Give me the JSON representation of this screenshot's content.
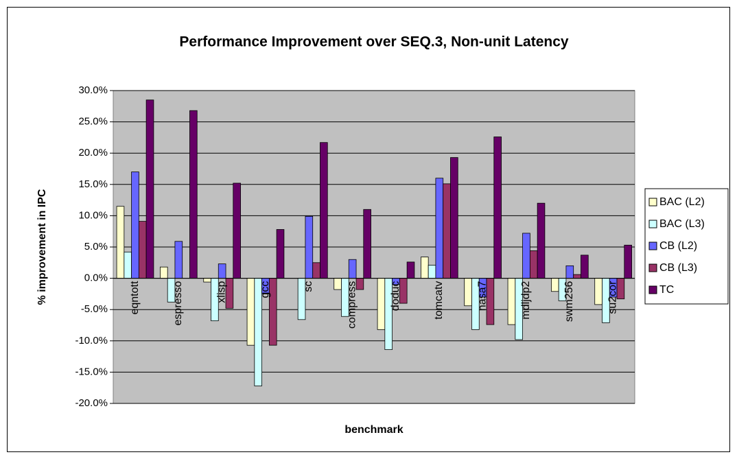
{
  "chart_data": {
    "type": "bar",
    "title": "Performance Improvement over SEQ.3, Non-unit Latency",
    "x_label": "benchmark",
    "y_label": "% improvement in IPC",
    "categories": [
      "eqntott",
      "espresso",
      "xlisp",
      "gcc",
      "sc",
      "compress",
      "doduc",
      "tomcatv",
      "nasa7",
      "mdljdp2",
      "swm256",
      "su2cor"
    ],
    "series": [
      {
        "name": "BAC (L2)",
        "color": "#ffffcc",
        "values": [
          11.5,
          1.8,
          -0.6,
          -10.7,
          0.0,
          -1.8,
          -8.2,
          3.4,
          -4.4,
          -7.4,
          -2.1,
          -4.2
        ]
      },
      {
        "name": "BAC (L3)",
        "color": "#ccffff",
        "values": [
          4.2,
          -3.8,
          -6.8,
          -17.2,
          -6.6,
          -6.1,
          -11.4,
          2.1,
          -8.2,
          -9.8,
          -3.6,
          -7.1
        ]
      },
      {
        "name": "CB (L2)",
        "color": "#6666ff",
        "values": [
          17.0,
          5.9,
          2.3,
          -2.5,
          9.9,
          3.0,
          -1.0,
          16.0,
          -3.0,
          7.2,
          2.0,
          -3.0
        ]
      },
      {
        "name": "CB (L3)",
        "color": "#993366",
        "values": [
          9.1,
          0.0,
          -4.8,
          -10.7,
          2.5,
          -1.8,
          -4.0,
          15.1,
          -7.4,
          4.4,
          0.6,
          -3.3
        ]
      },
      {
        "name": "TC",
        "color": "#660066",
        "values": [
          28.5,
          26.8,
          15.2,
          7.8,
          21.7,
          11.0,
          2.6,
          19.3,
          22.6,
          12.0,
          3.7,
          5.3
        ]
      }
    ],
    "ylim": [
      -20,
      30
    ],
    "yticks": [
      {
        "value": -20,
        "label": "-20.0%"
      },
      {
        "value": -15,
        "label": "-15.0%"
      },
      {
        "value": -10,
        "label": "-10.0%"
      },
      {
        "value": -5,
        "label": "-5.0%"
      },
      {
        "value": 0,
        "label": "0.0%"
      },
      {
        "value": 5,
        "label": "5.0%"
      },
      {
        "value": 10,
        "label": "10.0%"
      },
      {
        "value": 15,
        "label": "15.0%"
      },
      {
        "value": 20,
        "label": "20.0%"
      },
      {
        "value": 25,
        "label": "25.0%"
      },
      {
        "value": 30,
        "label": "30.0%"
      }
    ],
    "grid": true,
    "legend": "right"
  }
}
